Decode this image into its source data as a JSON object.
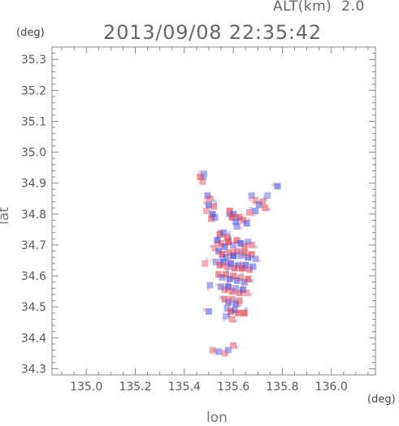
{
  "header": {
    "altitude_label": "ALT(km)",
    "altitude_value": "2.0",
    "timestamp": "2013/09/08 22:35:42"
  },
  "axes": {
    "y_unit": "(deg)",
    "x_unit": "(deg)",
    "y_title": "lat",
    "x_title": "lon"
  },
  "chart_data": {
    "type": "scatter",
    "title": "2013/09/08 22:35:42",
    "xlabel": "lon",
    "ylabel": "lat",
    "xlim": [
      134.86,
      136.18
    ],
    "ylim": [
      34.28,
      35.34
    ],
    "xticks": [
      "135.0",
      "135.2",
      "135.4",
      "135.6",
      "135.8",
      "136.0"
    ],
    "yticks": [
      "34.3",
      "34.4",
      "34.5",
      "34.6",
      "34.7",
      "34.8",
      "34.9",
      "35.0",
      "35.1",
      "35.2",
      "35.3"
    ],
    "grid": false,
    "colors": {
      "positive": "#e6414b",
      "negative": "#4b55e6"
    },
    "series": [
      {
        "values": [
          [
            135.465,
            34.92,
            0.6
          ],
          [
            135.48,
            34.93,
            -0.4
          ],
          [
            135.475,
            34.905,
            0.3
          ],
          [
            135.495,
            34.86,
            -0.5
          ],
          [
            135.505,
            34.85,
            0.4
          ],
          [
            135.5,
            34.83,
            -0.6
          ],
          [
            135.52,
            34.825,
            0.5
          ],
          [
            135.515,
            34.8,
            -0.7
          ],
          [
            135.51,
            34.785,
            0.4
          ],
          [
            135.525,
            34.79,
            -0.4
          ],
          [
            135.49,
            34.81,
            0.3
          ],
          [
            135.585,
            34.81,
            0.7
          ],
          [
            135.6,
            34.8,
            -0.6
          ],
          [
            135.595,
            34.79,
            0.8
          ],
          [
            135.61,
            34.775,
            -0.5
          ],
          [
            135.625,
            34.79,
            0.6
          ],
          [
            135.615,
            34.76,
            -0.4
          ],
          [
            135.64,
            34.78,
            0.5
          ],
          [
            135.655,
            34.77,
            -0.6
          ],
          [
            135.675,
            34.86,
            -0.4
          ],
          [
            135.69,
            34.845,
            0.3
          ],
          [
            135.705,
            34.83,
            -0.5
          ],
          [
            135.72,
            34.84,
            0.4
          ],
          [
            135.74,
            34.86,
            -0.3
          ],
          [
            135.73,
            34.82,
            0.5
          ],
          [
            135.78,
            34.89,
            -0.6
          ],
          [
            135.665,
            34.805,
            0.4
          ],
          [
            135.69,
            34.81,
            -0.5
          ],
          [
            135.545,
            34.735,
            0.7
          ],
          [
            135.56,
            34.74,
            -0.5
          ],
          [
            135.575,
            34.725,
            0.6
          ],
          [
            135.535,
            34.715,
            -0.8
          ],
          [
            135.55,
            34.705,
            0.4
          ],
          [
            135.565,
            34.695,
            -0.6
          ],
          [
            135.58,
            34.71,
            0.9
          ],
          [
            135.6,
            34.7,
            -0.4
          ],
          [
            135.615,
            34.715,
            0.6
          ],
          [
            135.63,
            34.705,
            -0.7
          ],
          [
            135.645,
            34.695,
            0.5
          ],
          [
            135.66,
            34.71,
            -0.3
          ],
          [
            135.675,
            34.7,
            0.4
          ],
          [
            135.525,
            34.69,
            0.3
          ],
          [
            135.54,
            34.68,
            -0.6
          ],
          [
            135.555,
            34.67,
            0.8
          ],
          [
            135.57,
            34.66,
            -0.5
          ],
          [
            135.585,
            34.675,
            0.6
          ],
          [
            135.6,
            34.665,
            -0.9
          ],
          [
            135.615,
            34.68,
            0.5
          ],
          [
            135.63,
            34.665,
            -0.4
          ],
          [
            135.645,
            34.675,
            0.7
          ],
          [
            135.66,
            34.66,
            -0.6
          ],
          [
            135.675,
            34.67,
            0.5
          ],
          [
            135.69,
            34.655,
            -0.4
          ],
          [
            135.53,
            34.645,
            -0.4
          ],
          [
            135.545,
            34.635,
            0.7
          ],
          [
            135.56,
            34.645,
            -0.6
          ],
          [
            135.575,
            34.63,
            0.5
          ],
          [
            135.59,
            34.64,
            -0.8
          ],
          [
            135.605,
            34.625,
            0.6
          ],
          [
            135.62,
            34.635,
            -0.5
          ],
          [
            135.635,
            34.625,
            0.9
          ],
          [
            135.65,
            34.635,
            -0.7
          ],
          [
            135.665,
            34.62,
            0.4
          ],
          [
            135.68,
            34.63,
            -0.5
          ],
          [
            135.54,
            34.605,
            0.5
          ],
          [
            135.555,
            34.595,
            -0.4
          ],
          [
            135.57,
            34.605,
            0.6
          ],
          [
            135.585,
            34.59,
            -0.7
          ],
          [
            135.6,
            34.6,
            0.5
          ],
          [
            135.615,
            34.585,
            -0.6
          ],
          [
            135.63,
            34.595,
            0.4
          ],
          [
            135.645,
            34.58,
            -0.5
          ],
          [
            135.66,
            34.59,
            0.7
          ],
          [
            135.55,
            34.565,
            -0.5
          ],
          [
            135.565,
            34.555,
            0.4
          ],
          [
            135.58,
            34.565,
            -0.8
          ],
          [
            135.595,
            34.55,
            0.6
          ],
          [
            135.61,
            34.56,
            -0.4
          ],
          [
            135.625,
            34.545,
            0.5
          ],
          [
            135.64,
            34.555,
            -0.6
          ],
          [
            135.655,
            34.545,
            0.3
          ],
          [
            135.565,
            34.525,
            0.6
          ],
          [
            135.58,
            34.515,
            -0.5
          ],
          [
            135.595,
            34.525,
            0.4
          ],
          [
            135.61,
            34.51,
            -0.7
          ],
          [
            135.625,
            34.52,
            0.5
          ],
          [
            135.575,
            34.495,
            -0.4
          ],
          [
            135.59,
            34.485,
            0.7
          ],
          [
            135.605,
            34.49,
            -0.5
          ],
          [
            135.62,
            34.48,
            0.6
          ],
          [
            135.645,
            34.48,
            0.8
          ],
          [
            135.57,
            34.47,
            -0.3
          ],
          [
            135.595,
            34.46,
            0.4
          ],
          [
            135.5,
            34.485,
            -0.5
          ],
          [
            135.485,
            34.64,
            0.3
          ],
          [
            135.505,
            34.57,
            -0.4
          ],
          [
            135.515,
            34.36,
            0.3
          ],
          [
            135.54,
            34.355,
            -0.4
          ],
          [
            135.565,
            34.35,
            0.3
          ],
          [
            135.58,
            34.36,
            -0.3
          ],
          [
            135.6,
            34.375,
            0.4
          ]
        ]
      }
    ]
  }
}
